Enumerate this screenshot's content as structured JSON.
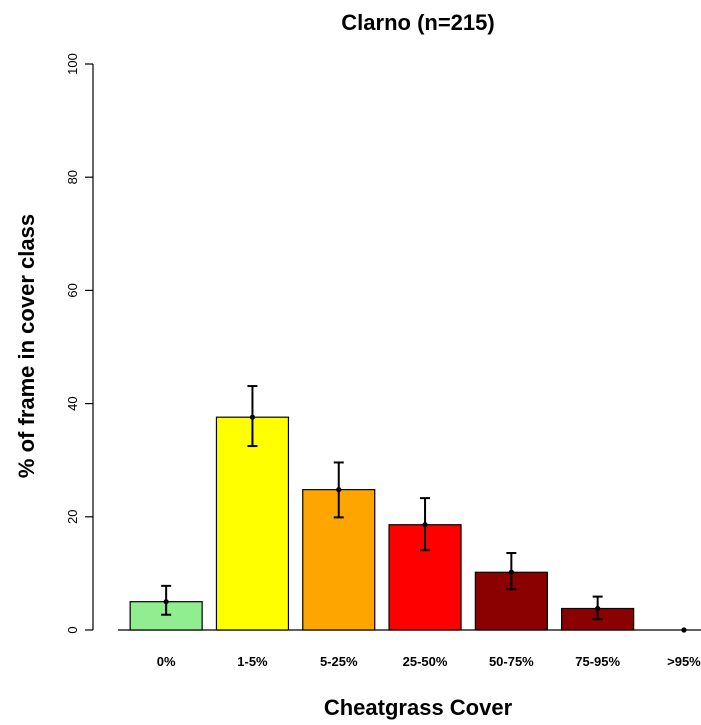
{
  "chart_data": {
    "type": "bar",
    "title": "Clarno (n=215)",
    "xlabel": "Cheatgrass Cover",
    "ylabel": "% of frame in cover class",
    "ylim": [
      0,
      100
    ],
    "yticks": [
      0,
      20,
      40,
      60,
      80,
      100
    ],
    "categories": [
      "0%",
      "1-5%",
      "5-25%",
      "25-50%",
      "50-75%",
      "75-95%",
      ">95%"
    ],
    "values": [
      5.0,
      37.6,
      24.8,
      18.6,
      10.2,
      3.8,
      0
    ],
    "error_low": [
      2.7,
      32.5,
      19.9,
      14.1,
      7.2,
      1.9,
      0
    ],
    "error_high": [
      7.8,
      43.1,
      29.6,
      23.3,
      13.6,
      5.9,
      0
    ],
    "colors": [
      "#90ee90",
      "#ffff00",
      "#ffa500",
      "#ff0000",
      "#8b0000",
      "#8b0000",
      "#8b0000"
    ],
    "grid": false,
    "legend": "none"
  }
}
